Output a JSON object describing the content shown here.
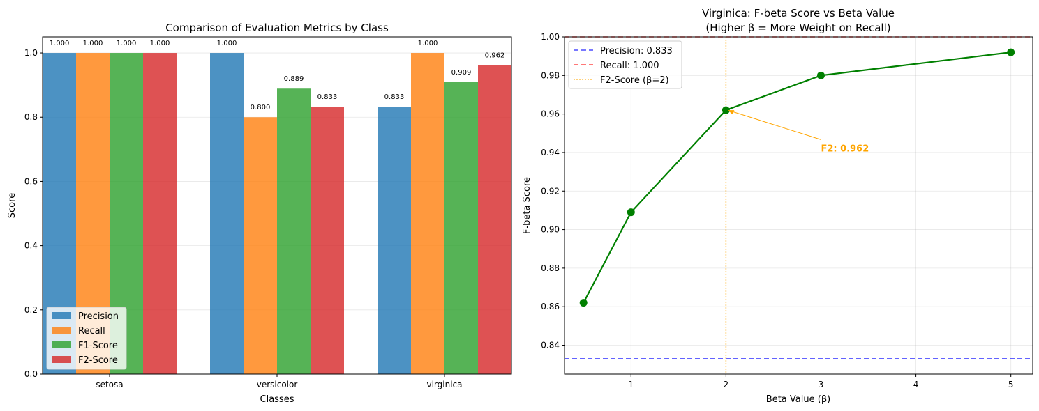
{
  "chart_data": [
    {
      "type": "bar",
      "title": "Comparison of Evaluation Metrics by Class",
      "xlabel": "Classes",
      "ylabel": "Score",
      "categories": [
        "setosa",
        "versicolor",
        "virginica"
      ],
      "ylim": [
        0,
        1.05
      ],
      "yticks": [
        0.0,
        0.2,
        0.4,
        0.6,
        0.8,
        1.0
      ],
      "grid": true,
      "legend_position": "lower-left",
      "series": [
        {
          "name": "Precision",
          "color": "#1f77b4",
          "values": [
            1.0,
            1.0,
            0.833
          ]
        },
        {
          "name": "Recall",
          "color": "#ff7f0e",
          "values": [
            1.0,
            0.8,
            1.0
          ]
        },
        {
          "name": "F1-Score",
          "color": "#2ca02c",
          "values": [
            1.0,
            0.889,
            0.909
          ]
        },
        {
          "name": "F2-Score",
          "color": "#d62728",
          "values": [
            1.0,
            0.833,
            0.962
          ]
        }
      ],
      "data_labels": [
        [
          "1.000",
          "1.000",
          "1.000",
          "1.000"
        ],
        [
          "1.000",
          "0.800",
          "0.889",
          "0.833"
        ],
        [
          "0.833",
          "1.000",
          "0.909",
          "0.962"
        ]
      ]
    },
    {
      "type": "line",
      "title": "Virginica: F-beta Score vs Beta Value",
      "subtitle": "(Higher β = More Weight on Recall)",
      "xlabel": "Beta Value (β)",
      "ylabel": "F-beta Score",
      "xlim": [
        0.3,
        5.23
      ],
      "ylim": [
        0.825,
        1.0
      ],
      "xticks": [
        1,
        2,
        3,
        4,
        5
      ],
      "yticks": [
        0.84,
        0.86,
        0.88,
        0.9,
        0.92,
        0.94,
        0.96,
        0.98,
        1.0
      ],
      "grid": true,
      "legend_position": "upper-left",
      "series": [
        {
          "name": "",
          "color": "#008000",
          "x": [
            0.5,
            1,
            2,
            3,
            5
          ],
          "y": [
            0.862,
            0.909,
            0.962,
            0.98,
            0.992
          ]
        }
      ],
      "reference_lines": [
        {
          "name": "Precision: 0.833",
          "orientation": "horizontal",
          "value": 0.833,
          "color": "#0000ff",
          "style": "dashed"
        },
        {
          "name": "Recall: 1.000",
          "orientation": "horizontal",
          "value": 1.0,
          "color": "#ff0000",
          "style": "dashed"
        },
        {
          "name": "F2-Score (β=2)",
          "orientation": "vertical",
          "value": 2,
          "color": "#ffa500",
          "style": "dotted"
        }
      ],
      "annotation": {
        "text": "F2: 0.962",
        "x": 2,
        "y": 0.962,
        "text_x": 3,
        "text_y": 0.942,
        "color": "#ffa500"
      }
    }
  ]
}
